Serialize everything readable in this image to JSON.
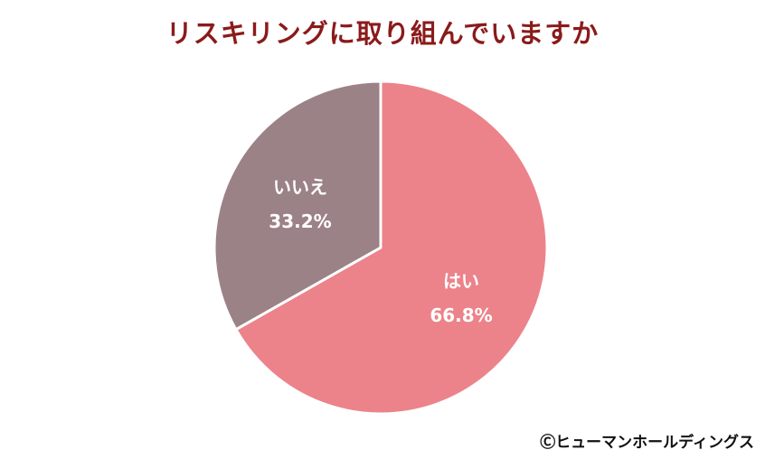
{
  "chart_data": {
    "type": "pie",
    "title": "リスキリングに取り組んでいますか",
    "slices": [
      {
        "label": "はい",
        "value": 66.8,
        "value_label": "66.8%",
        "color": "#ec838a"
      },
      {
        "label": "いいえ",
        "value": 33.2,
        "value_label": "33.2%",
        "color": "#9b8287"
      }
    ],
    "start_angle": "12 o'clock",
    "direction": "clockwise",
    "separator_color": "#ffffff"
  },
  "footer": {
    "credit": "Ⓒヒューマンホールディングス"
  }
}
